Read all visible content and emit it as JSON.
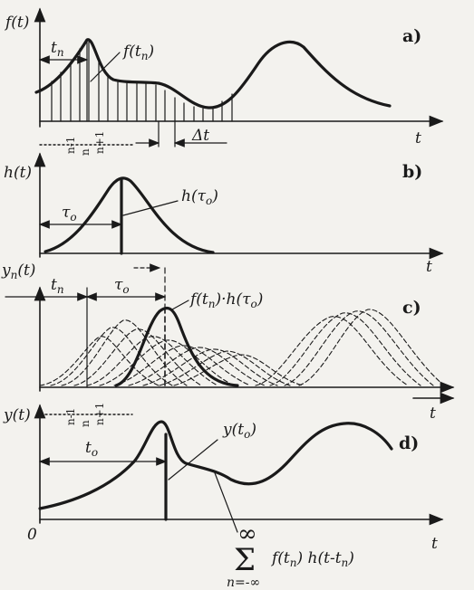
{
  "panel_a": {
    "y_axis_label": "f(t)",
    "panel_tag": "a)",
    "x_axis_label": "t",
    "interval_label": "t",
    "interval_sub": "n",
    "point_label": "f(t",
    "point_sub": "n",
    "point_close": ")",
    "step_label": "Δt",
    "tick_nm1": "n-1",
    "tick_n": "n",
    "tick_np1": "n+1"
  },
  "panel_b": {
    "y_axis_label": "h(t)",
    "panel_tag": "b)",
    "x_axis_label": "t",
    "interval_label": "τ",
    "interval_sub": "o",
    "point_label": "h(τ",
    "point_sub": "o",
    "point_close": ")"
  },
  "panel_c": {
    "y_axis_label": "y",
    "y_axis_sub": "n",
    "y_axis_rest": "(t)",
    "panel_tag": "c)",
    "x_axis_label": "t",
    "tn_label": "t",
    "tn_sub": "n",
    "tau_label": "τ",
    "tau_sub": "o",
    "product_label": "f(t",
    "product_sub1": "n",
    "product_mid": ")·h(τ",
    "product_sub2": "o",
    "product_close": ")"
  },
  "panel_d": {
    "y_axis_label": "y(t)",
    "panel_tag": "d)",
    "x_axis_label": "t",
    "origin_label": "0",
    "interval_label": "t",
    "interval_sub": "o",
    "point_label": "y(t",
    "point_sub": "o",
    "point_close": ")",
    "tick_nm1": "n-1",
    "tick_n": "n",
    "tick_np1": "n+1",
    "sum_upper": "∞",
    "sum_symbol": "Σ",
    "sum_lower": "n=-∞",
    "sum_term": "f(t",
    "sum_term_sub1": "n",
    "sum_term_mid": ") h(t-t",
    "sum_term_sub2": "n",
    "sum_term_close": ")"
  }
}
